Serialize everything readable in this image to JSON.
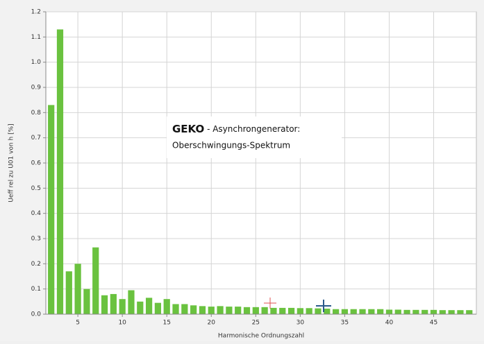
{
  "chart_data": {
    "type": "bar",
    "annotation": {
      "bold": "GEKO",
      "line1": " - Asynchrongenerator:",
      "line2": "Oberschwingungs-Spektrum"
    },
    "x_label": "Harmonische Ordnungszahl",
    "y_label": "Ueff rel zu U01 von h [%]",
    "x": [
      2,
      3,
      4,
      5,
      6,
      7,
      8,
      9,
      10,
      11,
      12,
      13,
      14,
      15,
      16,
      17,
      18,
      19,
      20,
      21,
      22,
      23,
      24,
      25,
      26,
      27,
      28,
      29,
      30,
      31,
      32,
      33,
      34,
      35,
      36,
      37,
      38,
      39,
      40,
      41,
      42,
      43,
      44,
      45,
      46,
      47,
      48,
      49
    ],
    "values": [
      0.83,
      1.13,
      0.17,
      0.2,
      0.1,
      0.265,
      0.075,
      0.08,
      0.06,
      0.095,
      0.05,
      0.065,
      0.045,
      0.06,
      0.04,
      0.04,
      0.035,
      0.032,
      0.03,
      0.032,
      0.03,
      0.03,
      0.028,
      0.028,
      0.028,
      0.025,
      0.025,
      0.025,
      0.024,
      0.024,
      0.023,
      0.022,
      0.02,
      0.02,
      0.02,
      0.02,
      0.02,
      0.02,
      0.018,
      0.018,
      0.017,
      0.017,
      0.017,
      0.017,
      0.016,
      0.016,
      0.016,
      0.016
    ],
    "color": "#6ac23f",
    "xlim": [
      1.4,
      49.8
    ],
    "xticks": [
      5,
      10,
      15,
      20,
      25,
      30,
      35,
      40,
      45
    ],
    "ylim": [
      0,
      1.2
    ],
    "yticks": [
      {
        "value": 0,
        "label": "0.0"
      },
      0.1,
      0.2,
      0.3,
      0.4,
      0.5,
      0.6,
      0.7,
      0.8,
      0.9,
      {
        "value": 1,
        "label": "1.0"
      },
      1.1,
      1.2
    ],
    "grid": true
  }
}
